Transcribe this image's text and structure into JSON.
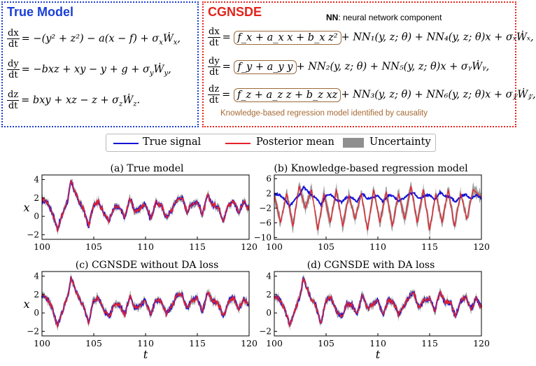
{
  "header": {
    "true_model_title": "True Model",
    "cgnsde_title": "CGNSDE",
    "nn_note_bold": "NN",
    "nn_note_text": ": neural network component",
    "knowledge_caption": "Knowledge-based regression model identified by causality",
    "eq_lhs": [
      "dx",
      "dt",
      "dy",
      "dt",
      "dz",
      "dt"
    ],
    "true_eqs": [
      "= −(y² + z²) − a(x − f) + σ",
      "= −bxz + xy − y + g + σ",
      "= bxy + xz − z + σ"
    ],
    "true_noise": [
      "Ẇ",
      "Ẇ",
      "Ẇ"
    ],
    "cg_boxes": [
      "f_x + a_x x + b_x z²",
      "f_y + a_y y",
      "f_z + a_z z + b_z xz"
    ],
    "cg_rest": [
      "+ NN₁(y, z; θ) + NN₄(y, z; θ)x + σₓẆₓ,",
      "+ NN₂(y, z; θ) + NN₅(y, z; θ)x + σᵧẆᵧ,",
      "+ NN₃(y, z; θ) + NN₆(y, z; θ)x + σ𝓏Ẇ𝓏,"
    ]
  },
  "legend": {
    "true_signal": "True signal",
    "posterior_mean": "Posterior mean",
    "uncertainty": "Uncertainty"
  },
  "colors": {
    "true": "#1414d8",
    "posterior": "#e8202a",
    "uncertainty": "#8f8f8f"
  },
  "chart_data": [
    {
      "type": "line",
      "title": "(a) True model",
      "ylabel": "x",
      "xlabel": "",
      "xlim": [
        100,
        120
      ],
      "ylim": [
        -2.5,
        4.5
      ],
      "xticks": [
        100,
        105,
        110,
        115,
        120
      ],
      "yticks": [
        -2,
        0,
        2,
        4
      ],
      "series": [
        {
          "name": "True signal"
        },
        {
          "name": "Posterior mean"
        },
        {
          "name": "Uncertainty"
        }
      ]
    },
    {
      "type": "line",
      "title": "(b) Knowledge-based regression model",
      "ylabel": "",
      "xlabel": "",
      "xlim": [
        100,
        120
      ],
      "ylim": [
        -10.5,
        7
      ],
      "xticks": [
        100,
        105,
        110,
        115,
        120
      ],
      "yticks": [
        -10,
        -6,
        -2,
        2,
        6
      ],
      "series": [
        {
          "name": "True signal"
        },
        {
          "name": "Posterior mean"
        },
        {
          "name": "Uncertainty"
        }
      ]
    },
    {
      "type": "line",
      "title": "(c) CGNSDE without DA loss",
      "ylabel": "x",
      "xlabel": "t",
      "xlim": [
        100,
        120
      ],
      "ylim": [
        -2.5,
        4.5
      ],
      "xticks": [
        100,
        105,
        110,
        115,
        120
      ],
      "yticks": [
        -2,
        0,
        2,
        4
      ],
      "series": [
        {
          "name": "True signal"
        },
        {
          "name": "Posterior mean"
        },
        {
          "name": "Uncertainty"
        }
      ]
    },
    {
      "type": "line",
      "title": "(d) CGNSDE with DA loss",
      "ylabel": "",
      "xlabel": "t",
      "xlim": [
        100,
        120
      ],
      "ylim": [
        -2.5,
        4.5
      ],
      "xticks": [
        100,
        105,
        110,
        115,
        120
      ],
      "yticks": [
        -2,
        0,
        2,
        4
      ],
      "series": [
        {
          "name": "True signal"
        },
        {
          "name": "Posterior mean"
        },
        {
          "name": "Uncertainty"
        }
      ]
    }
  ],
  "signal": {
    "t": [
      100,
      100.5,
      101,
      101.5,
      102,
      102.5,
      102.8,
      103.2,
      103.6,
      104,
      104.5,
      105,
      105.5,
      106,
      106.5,
      107,
      107.5,
      108,
      108.5,
      109,
      109.5,
      110,
      110.5,
      111,
      111.5,
      112,
      112.5,
      113,
      113.5,
      114,
      114.5,
      115,
      115.5,
      116,
      116.5,
      117,
      117.5,
      118,
      118.5,
      119,
      119.5,
      120
    ],
    "x": [
      1.8,
      1.6,
      0.4,
      -1.4,
      0.3,
      1.8,
      3.8,
      2.6,
      1.5,
      0.8,
      -1.1,
      1.4,
      1.6,
      0.2,
      -0.4,
      1.0,
      0.9,
      -0.2,
      2.0,
      0.5,
      0.9,
      1.4,
      -0.3,
      1.5,
      1.2,
      -0.1,
      0.6,
      1.8,
      2.1,
      0.5,
      1.4,
      1.6,
      0.2,
      2.3,
      1.2,
      1.1,
      -0.4,
      1.2,
      1.7,
      0.4,
      1.6,
      0.6
    ]
  },
  "b_mean": {
    "t": [
      100,
      100.6,
      101.2,
      101.8,
      102.4,
      103,
      103.6,
      104.2,
      104.8,
      105.4,
      106,
      106.6,
      107.2,
      107.8,
      108.4,
      109,
      109.6,
      110.2,
      110.8,
      111.4,
      112,
      112.6,
      113.2,
      113.8,
      114.4,
      115,
      115.6,
      116.2,
      116.8,
      117.4,
      118,
      118.6,
      119.2,
      120
    ],
    "x": [
      1.5,
      -6,
      2,
      -7,
      4,
      -2,
      3,
      -8,
      2,
      -6,
      3,
      -7,
      1.5,
      -5,
      2,
      -8,
      3,
      -6,
      2.5,
      -7,
      2,
      -5,
      4,
      -6,
      3,
      -8,
      2,
      -6,
      3,
      -7,
      2,
      -5,
      3,
      1
    ]
  }
}
